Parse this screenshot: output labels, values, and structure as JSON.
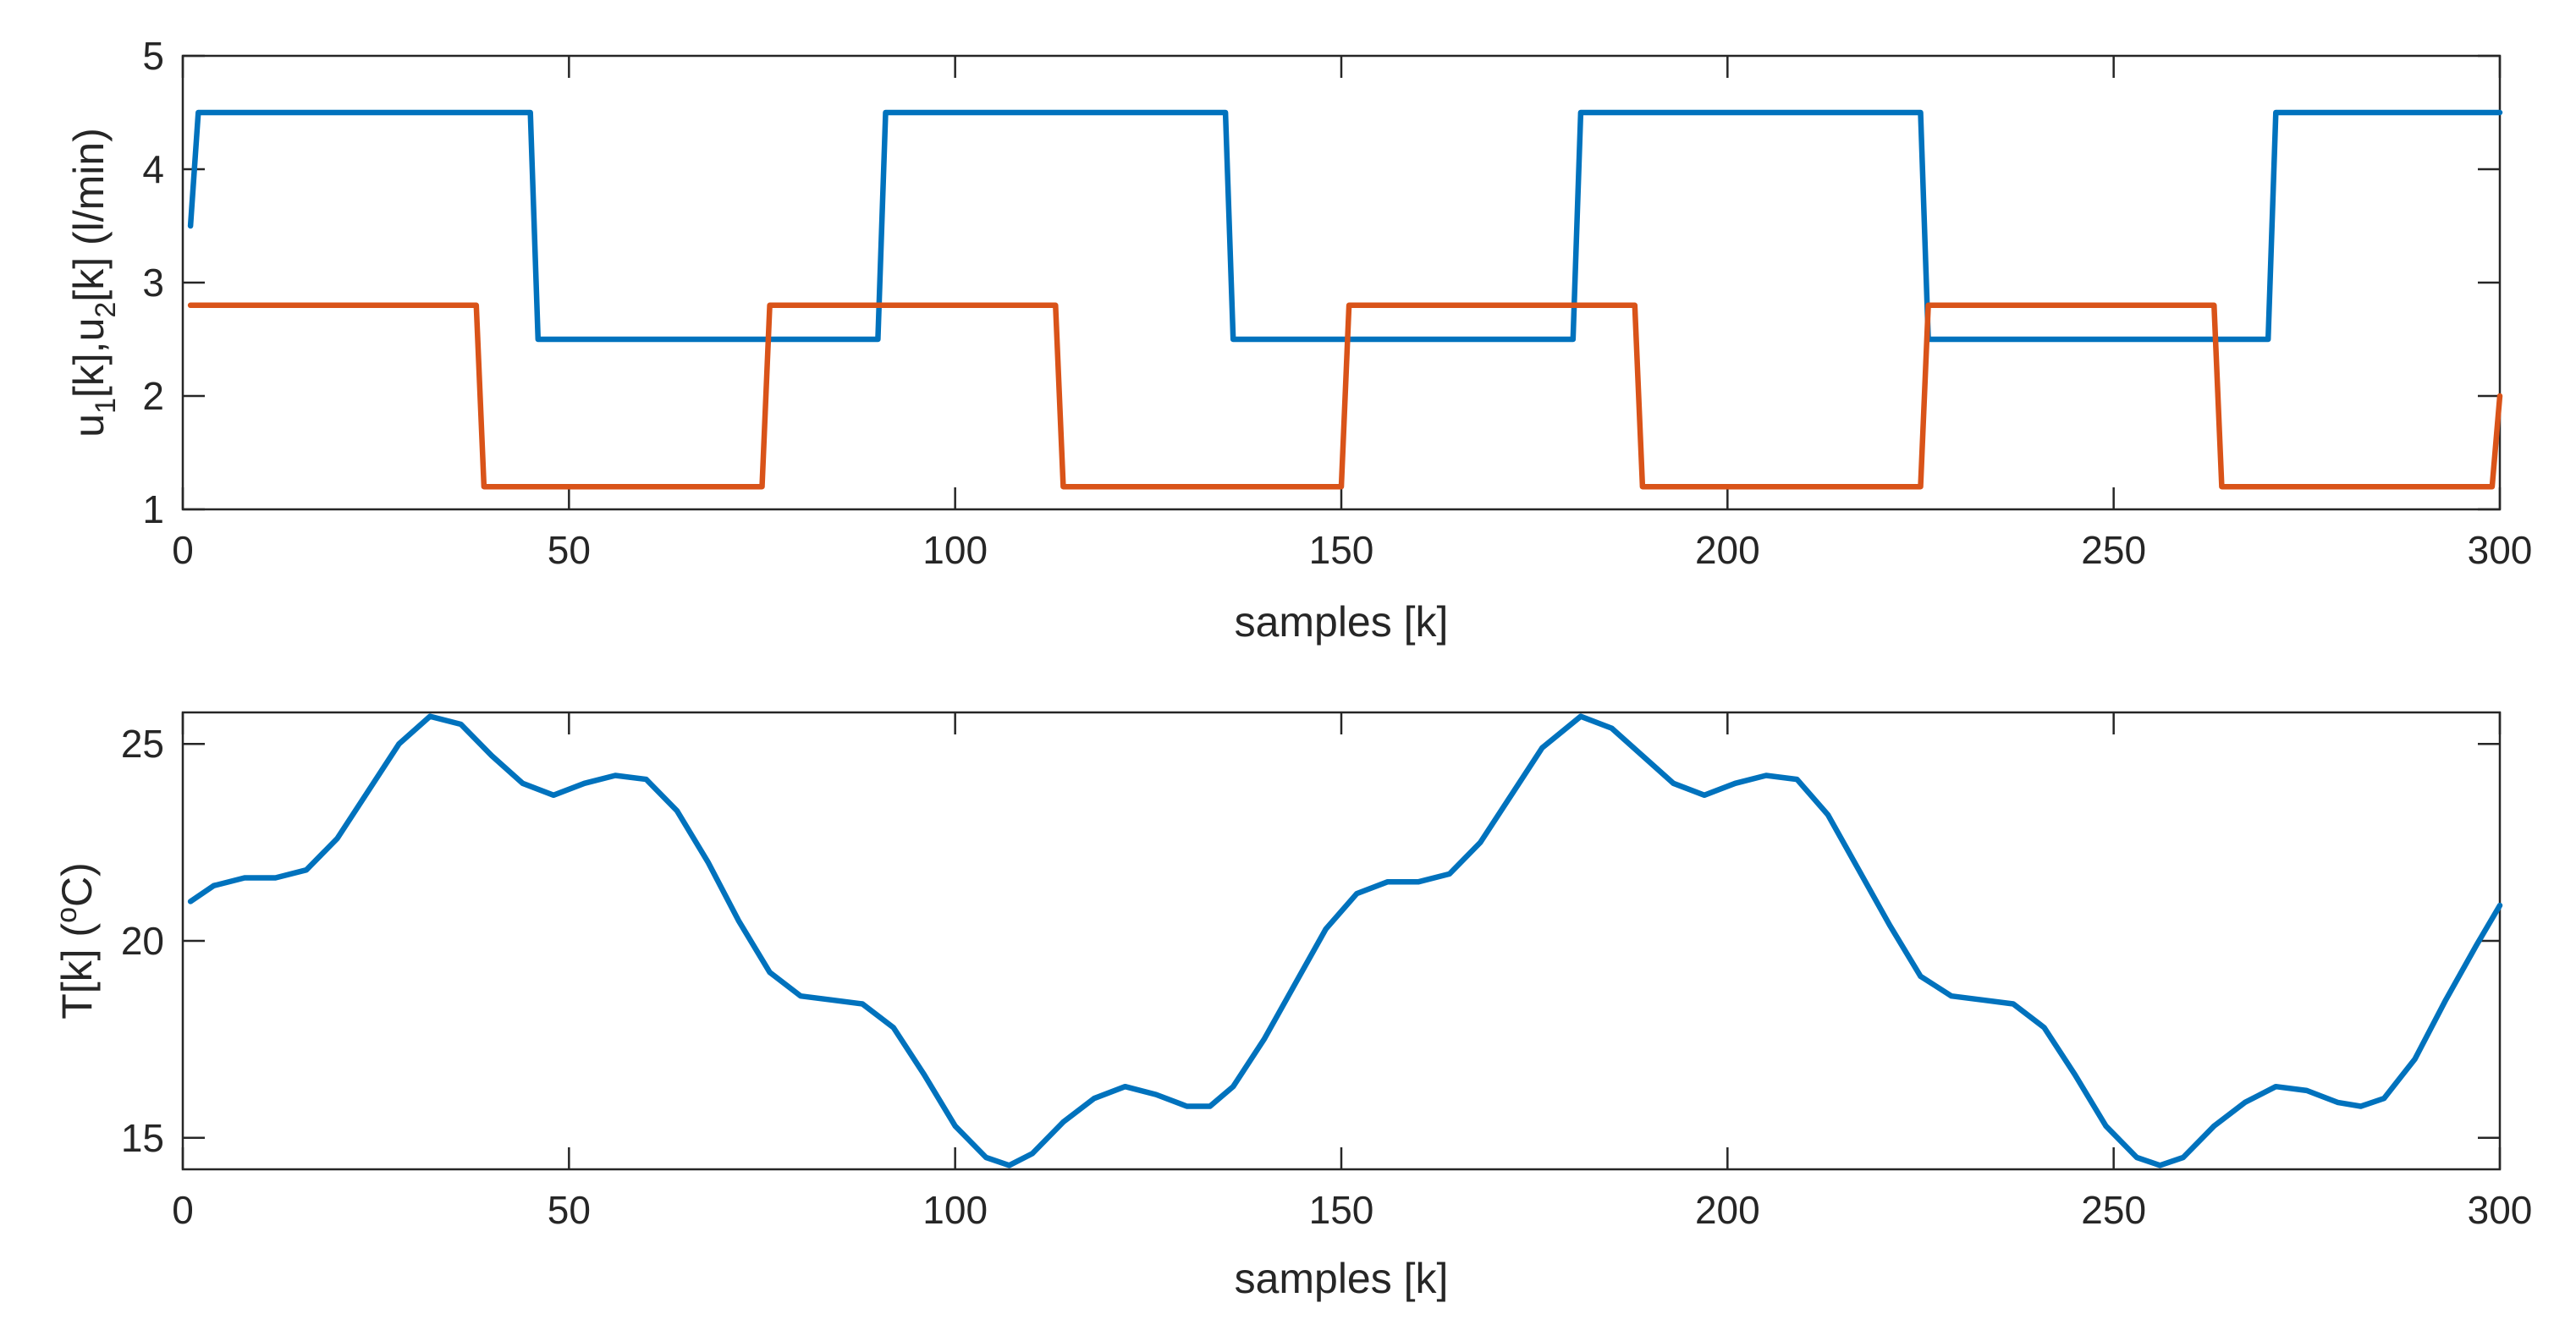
{
  "chart_data": [
    {
      "type": "line",
      "xlabel": "samples [k]",
      "ylabel": {
        "base1": "u",
        "sub1": "1",
        "mid": "[k],u",
        "sub2": "2",
        "tail": "[k] (l/min)"
      },
      "xlim": [
        0,
        300
      ],
      "ylim": [
        1,
        5
      ],
      "xticks": [
        "0",
        "50",
        "100",
        "150",
        "200",
        "250",
        "300"
      ],
      "xtick_values": [
        0,
        50,
        100,
        150,
        200,
        250,
        300
      ],
      "yticks": [
        "1",
        "2",
        "3",
        "4",
        "5"
      ],
      "ytick_values": [
        1,
        2,
        3,
        4,
        5
      ],
      "series": [
        {
          "name": "u1",
          "color": "#0072BD",
          "x": [
            1,
            2,
            45,
            46,
            90,
            91,
            135,
            136,
            180,
            181,
            225,
            226,
            270,
            271,
            300
          ],
          "y": [
            3.5,
            4.5,
            4.5,
            2.5,
            2.5,
            4.5,
            4.5,
            2.5,
            2.5,
            4.5,
            4.5,
            2.5,
            2.5,
            4.5,
            4.5
          ]
        },
        {
          "name": "u2",
          "color": "#D95319",
          "x": [
            1,
            38,
            39,
            75,
            76,
            113,
            114,
            150,
            151,
            188,
            189,
            225,
            226,
            263,
            264,
            299,
            300
          ],
          "y": [
            2.8,
            2.8,
            1.2,
            1.2,
            2.8,
            2.8,
            1.2,
            1.2,
            2.8,
            2.8,
            1.2,
            1.2,
            2.8,
            2.8,
            1.2,
            1.2,
            2.0
          ]
        }
      ]
    },
    {
      "type": "line",
      "xlabel": "samples [k]",
      "ylabel": {
        "base": "T[k] (",
        "sup": "o",
        "tail": "C)"
      },
      "xlim": [
        0,
        300
      ],
      "ylim": [
        14.2,
        25.8
      ],
      "xticks": [
        "0",
        "50",
        "100",
        "150",
        "200",
        "250",
        "300"
      ],
      "xtick_values": [
        0,
        50,
        100,
        150,
        200,
        250,
        300
      ],
      "yticks": [
        "15",
        "20",
        "25"
      ],
      "ytick_values": [
        15,
        20,
        25
      ],
      "series": [
        {
          "name": "T",
          "color": "#0072BD",
          "x": [
            1,
            4,
            8,
            12,
            16,
            20,
            24,
            28,
            32,
            36,
            40,
            44,
            48,
            52,
            56,
            60,
            64,
            68,
            72,
            76,
            80,
            84,
            88,
            92,
            96,
            100,
            104,
            107,
            110,
            114,
            118,
            122,
            126,
            130,
            133,
            136,
            140,
            144,
            148,
            152,
            156,
            160,
            164,
            168,
            172,
            176,
            181,
            185,
            189,
            193,
            197,
            201,
            205,
            209,
            213,
            217,
            221,
            225,
            229,
            233,
            237,
            241,
            245,
            249,
            253,
            256,
            259,
            263,
            267,
            271,
            275,
            279,
            282,
            285,
            289,
            293,
            297,
            300
          ],
          "y": [
            21.0,
            21.4,
            21.6,
            21.6,
            21.8,
            22.6,
            23.8,
            25.0,
            25.7,
            25.5,
            24.7,
            24.0,
            23.7,
            24.0,
            24.2,
            24.1,
            23.3,
            22.0,
            20.5,
            19.2,
            18.6,
            18.5,
            18.4,
            17.8,
            16.6,
            15.3,
            14.5,
            14.3,
            14.6,
            15.4,
            16.0,
            16.3,
            16.1,
            15.8,
            15.8,
            16.3,
            17.5,
            18.9,
            20.3,
            21.2,
            21.5,
            21.5,
            21.7,
            22.5,
            23.7,
            24.9,
            25.7,
            25.4,
            24.7,
            24.0,
            23.7,
            24.0,
            24.2,
            24.1,
            23.2,
            21.8,
            20.4,
            19.1,
            18.6,
            18.5,
            18.4,
            17.8,
            16.6,
            15.3,
            14.5,
            14.3,
            14.5,
            15.3,
            15.9,
            16.3,
            16.2,
            15.9,
            15.8,
            16.0,
            17.0,
            18.5,
            19.9,
            20.9
          ]
        }
      ]
    }
  ]
}
